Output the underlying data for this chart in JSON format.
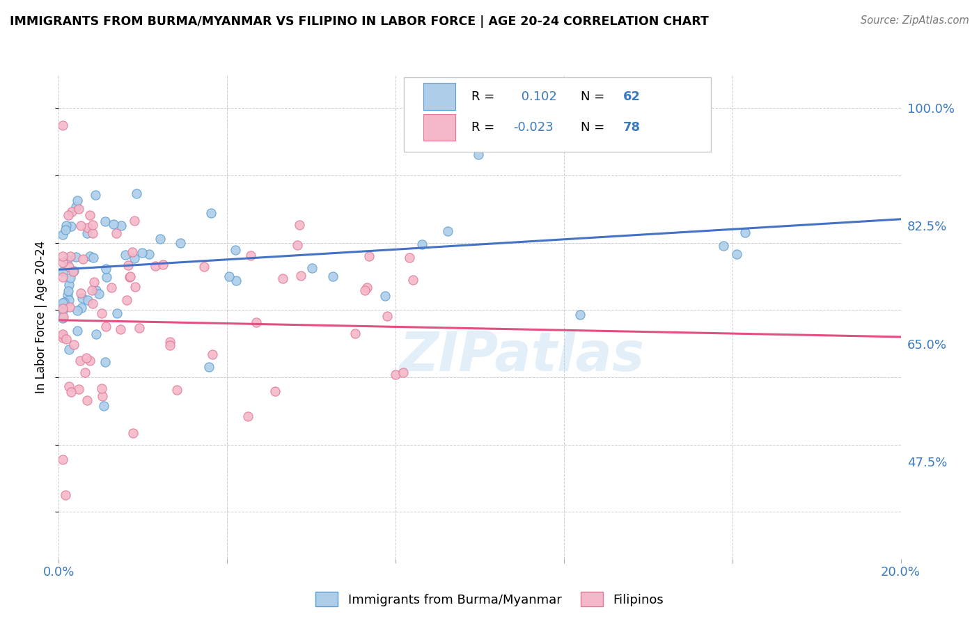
{
  "title": "IMMIGRANTS FROM BURMA/MYANMAR VS FILIPINO IN LABOR FORCE | AGE 20-24 CORRELATION CHART",
  "source": "Source: ZipAtlas.com",
  "ylabel": "In Labor Force | Age 20-24",
  "xlim": [
    0.0,
    0.2
  ],
  "ylim": [
    0.33,
    1.05
  ],
  "ytick_positions": [
    0.475,
    0.65,
    0.825,
    1.0
  ],
  "ytick_labels": [
    "47.5%",
    "65.0%",
    "82.5%",
    "100.0%"
  ],
  "blue_R": 0.102,
  "blue_N": 62,
  "pink_R": -0.023,
  "pink_N": 78,
  "blue_fill": "#aecde8",
  "pink_fill": "#f4b8c8",
  "blue_edge": "#5a9fd4",
  "pink_edge": "#e07898",
  "blue_line": "#4472c4",
  "pink_line": "#e05080",
  "watermark": "ZIPatlas",
  "legend_label_blue": "Immigrants from Burma/Myanmar",
  "legend_label_pink": "Filipinos",
  "blue_trend_y0": 0.76,
  "blue_trend_y1": 0.835,
  "pink_trend_y0": 0.685,
  "pink_trend_y1": 0.66
}
